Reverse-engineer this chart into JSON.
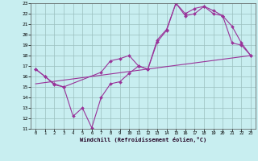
{
  "bg_color": "#c8eef0",
  "grid_color": "#9bbfbf",
  "line_color": "#993399",
  "xlabel": "Windchill (Refroidissement éolien,°C)",
  "xlim": [
    -0.5,
    23.5
  ],
  "ylim": [
    11,
    23
  ],
  "xticks": [
    0,
    1,
    2,
    3,
    4,
    5,
    6,
    7,
    8,
    9,
    10,
    11,
    12,
    13,
    14,
    15,
    16,
    17,
    18,
    19,
    20,
    21,
    22,
    23
  ],
  "yticks": [
    11,
    12,
    13,
    14,
    15,
    16,
    17,
    18,
    19,
    20,
    21,
    22,
    23
  ],
  "line1_x": [
    0,
    1,
    2,
    3,
    4,
    5,
    6,
    7,
    8,
    9,
    10,
    11,
    12,
    13,
    14,
    15,
    16,
    17,
    18,
    19,
    20,
    21,
    22,
    23
  ],
  "line1_y": [
    16.7,
    16.0,
    15.2,
    15.0,
    12.2,
    13.0,
    11.1,
    14.0,
    15.3,
    15.5,
    16.3,
    17.0,
    16.7,
    19.3,
    20.4,
    23.0,
    21.8,
    22.0,
    22.7,
    22.0,
    21.8,
    19.2,
    19.0,
    18.0
  ],
  "line2_x": [
    0,
    23
  ],
  "line2_y": [
    15.3,
    18.0
  ],
  "line3_x": [
    0,
    1,
    2,
    3,
    7,
    8,
    9,
    10,
    11,
    12,
    13,
    14,
    15,
    16,
    17,
    18,
    19,
    20,
    21,
    22,
    23
  ],
  "line3_y": [
    16.7,
    16.0,
    15.3,
    15.0,
    16.4,
    17.5,
    17.7,
    18.0,
    17.0,
    16.7,
    19.5,
    20.5,
    23.0,
    22.0,
    22.5,
    22.7,
    22.3,
    21.8,
    20.8,
    19.2,
    18.0
  ]
}
